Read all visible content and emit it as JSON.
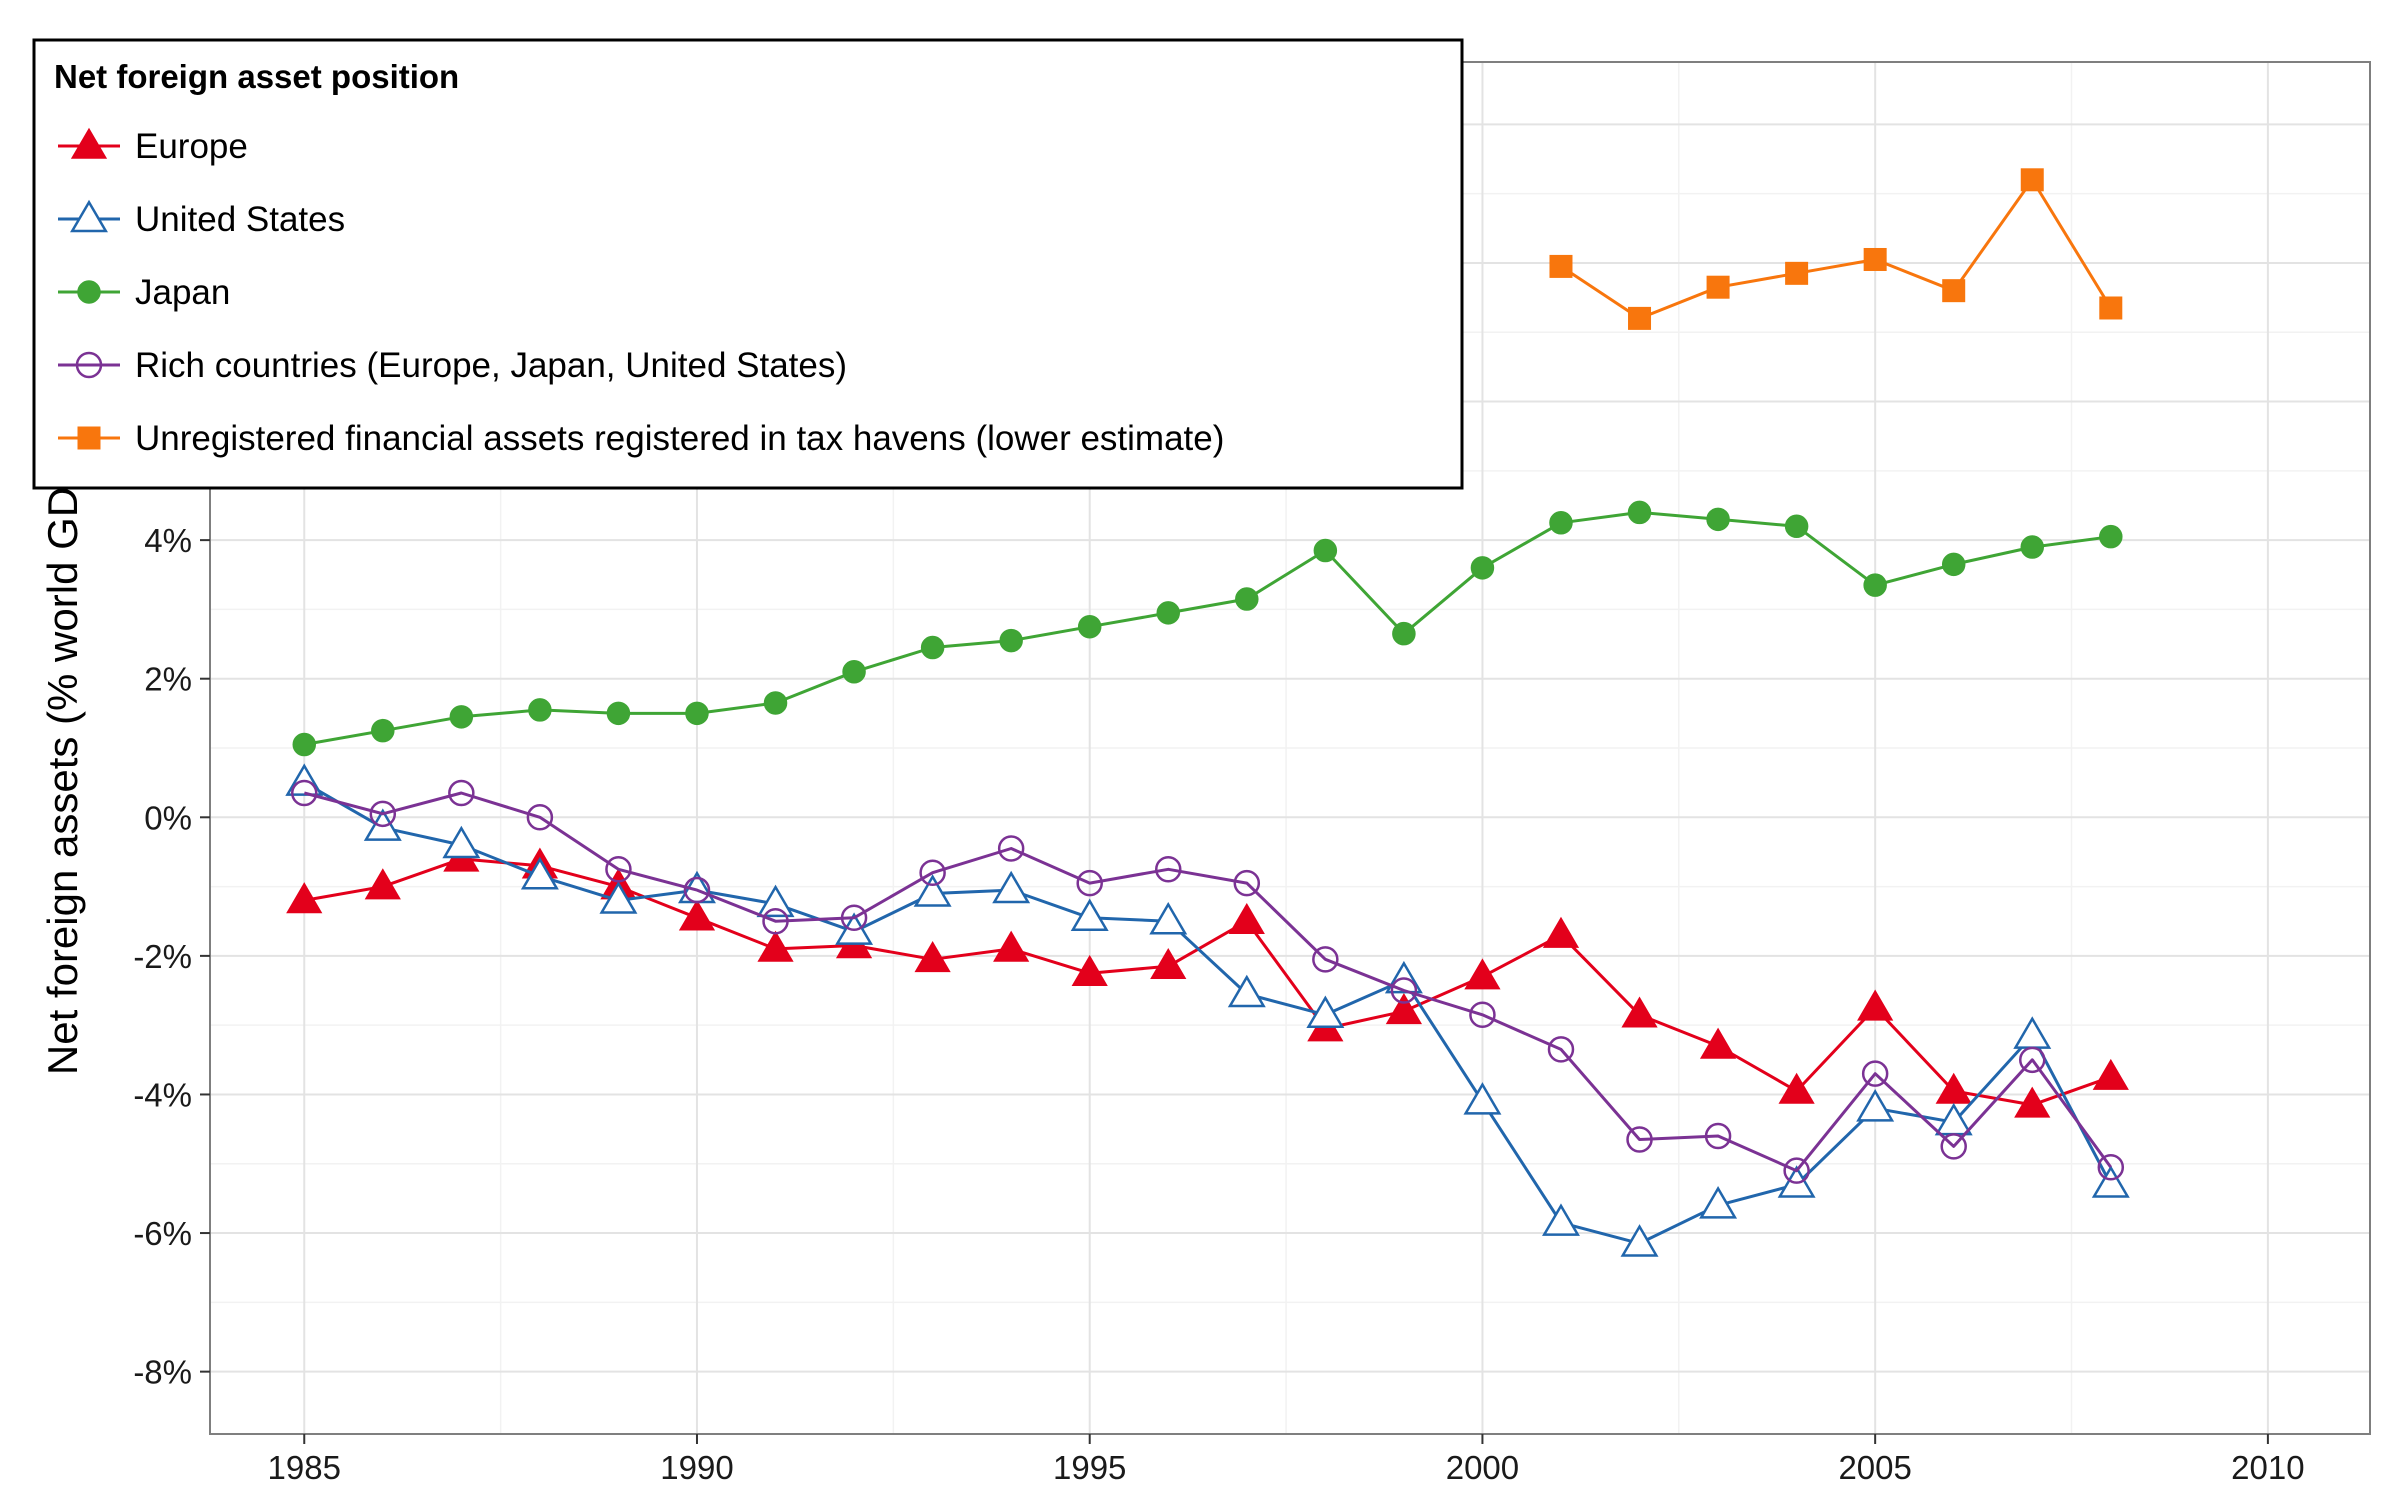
{
  "chart_data": {
    "type": "line",
    "title": "",
    "xlabel": "",
    "ylabel": "Net foreign assets (% world GDP)",
    "xlim": [
      1983.8,
      2011.3
    ],
    "ylim": [
      -8.9,
      10.9
    ],
    "x_ticks": [
      1985,
      1990,
      1995,
      2000,
      2005,
      2010
    ],
    "x_tick_labels": [
      "1985",
      "1990",
      "1995",
      "2000",
      "2005",
      "2010"
    ],
    "y_ticks": [
      -8,
      -6,
      -4,
      -2,
      0,
      2,
      4
    ],
    "y_tick_labels": [
      "-8%",
      "-6%",
      "-4%",
      "-2%",
      "0%",
      "2%",
      "4%"
    ],
    "grid": true,
    "legend": {
      "title": "Net foreign asset position",
      "placement": "top-left"
    },
    "series": [
      {
        "name": "Europe",
        "color": "#e3001b",
        "marker": "triangle-filled",
        "points": [
          [
            1985,
            -1.2
          ],
          [
            1986,
            -1.0
          ],
          [
            1987,
            -0.6
          ],
          [
            1988,
            -0.7
          ],
          [
            1989,
            -1.0
          ],
          [
            1990,
            -1.45
          ],
          [
            1991,
            -1.9
          ],
          [
            1992,
            -1.85
          ],
          [
            1993,
            -2.05
          ],
          [
            1994,
            -1.9
          ],
          [
            1995,
            -2.25
          ],
          [
            1996,
            -2.15
          ],
          [
            1997,
            -1.5
          ],
          [
            1998,
            -3.05
          ],
          [
            1999,
            -2.8
          ],
          [
            2000,
            -2.3
          ],
          [
            2001,
            -1.7
          ],
          [
            2002,
            -2.85
          ],
          [
            2003,
            -3.3
          ],
          [
            2004,
            -3.95
          ],
          [
            2005,
            -2.75
          ],
          [
            2006,
            -3.95
          ],
          [
            2007,
            -4.15
          ],
          [
            2008,
            -3.75
          ]
        ]
      },
      {
        "name": "United States",
        "color": "#2166ac",
        "marker": "triangle-open",
        "points": [
          [
            1985,
            0.5
          ],
          [
            1986,
            -0.15
          ],
          [
            1987,
            -0.4
          ],
          [
            1988,
            -0.85
          ],
          [
            1989,
            -1.2
          ],
          [
            1990,
            -1.05
          ],
          [
            1991,
            -1.25
          ],
          [
            1992,
            -1.65
          ],
          [
            1993,
            -1.1
          ],
          [
            1994,
            -1.05
          ],
          [
            1995,
            -1.45
          ],
          [
            1996,
            -1.5
          ],
          [
            1997,
            -2.55
          ],
          [
            1998,
            -2.85
          ],
          [
            1999,
            -2.35
          ],
          [
            2000,
            -4.1
          ],
          [
            2001,
            -5.85
          ],
          [
            2002,
            -6.15
          ],
          [
            2003,
            -5.6
          ],
          [
            2004,
            -5.3
          ],
          [
            2005,
            -4.2
          ],
          [
            2006,
            -4.4
          ],
          [
            2007,
            -3.15
          ],
          [
            2008,
            -5.3
          ]
        ]
      },
      {
        "name": "Japan",
        "color": "#3fa535",
        "marker": "circle-filled",
        "points": [
          [
            1985,
            1.05
          ],
          [
            1986,
            1.25
          ],
          [
            1987,
            1.45
          ],
          [
            1988,
            1.55
          ],
          [
            1989,
            1.5
          ],
          [
            1990,
            1.5
          ],
          [
            1991,
            1.65
          ],
          [
            1992,
            2.1
          ],
          [
            1993,
            2.45
          ],
          [
            1994,
            2.55
          ],
          [
            1995,
            2.75
          ],
          [
            1996,
            2.95
          ],
          [
            1997,
            3.15
          ],
          [
            1998,
            3.85
          ],
          [
            1999,
            2.65
          ],
          [
            2000,
            3.6
          ],
          [
            2001,
            4.25
          ],
          [
            2002,
            4.4
          ],
          [
            2003,
            4.3
          ],
          [
            2004,
            4.2
          ],
          [
            2005,
            3.35
          ],
          [
            2006,
            3.65
          ],
          [
            2007,
            3.9
          ],
          [
            2008,
            4.05
          ]
        ]
      },
      {
        "name": "Rich countries (Europe, Japan, United States)",
        "color": "#7b3294",
        "marker": "circle-open",
        "points": [
          [
            1985,
            0.35
          ],
          [
            1986,
            0.05
          ],
          [
            1987,
            0.35
          ],
          [
            1988,
            0.0
          ],
          [
            1989,
            -0.75
          ],
          [
            1990,
            -1.05
          ],
          [
            1991,
            -1.5
          ],
          [
            1992,
            -1.45
          ],
          [
            1993,
            -0.8
          ],
          [
            1994,
            -0.45
          ],
          [
            1995,
            -0.95
          ],
          [
            1996,
            -0.75
          ],
          [
            1997,
            -0.95
          ],
          [
            1998,
            -2.05
          ],
          [
            1999,
            -2.5
          ],
          [
            2000,
            -2.85
          ],
          [
            2001,
            -3.35
          ],
          [
            2002,
            -4.65
          ],
          [
            2003,
            -4.6
          ],
          [
            2004,
            -5.1
          ],
          [
            2005,
            -3.7
          ],
          [
            2006,
            -4.75
          ],
          [
            2007,
            -3.5
          ],
          [
            2008,
            -5.05
          ]
        ]
      },
      {
        "name": "Unregistered financial assets registered in tax havens (lower estimate)",
        "color": "#f8760d",
        "marker": "square-filled",
        "points": [
          [
            2001,
            7.95
          ],
          [
            2002,
            7.2
          ],
          [
            2003,
            7.65
          ],
          [
            2004,
            7.85
          ],
          [
            2005,
            8.05
          ],
          [
            2006,
            7.6
          ],
          [
            2007,
            9.2
          ],
          [
            2008,
            7.35
          ]
        ]
      }
    ]
  }
}
